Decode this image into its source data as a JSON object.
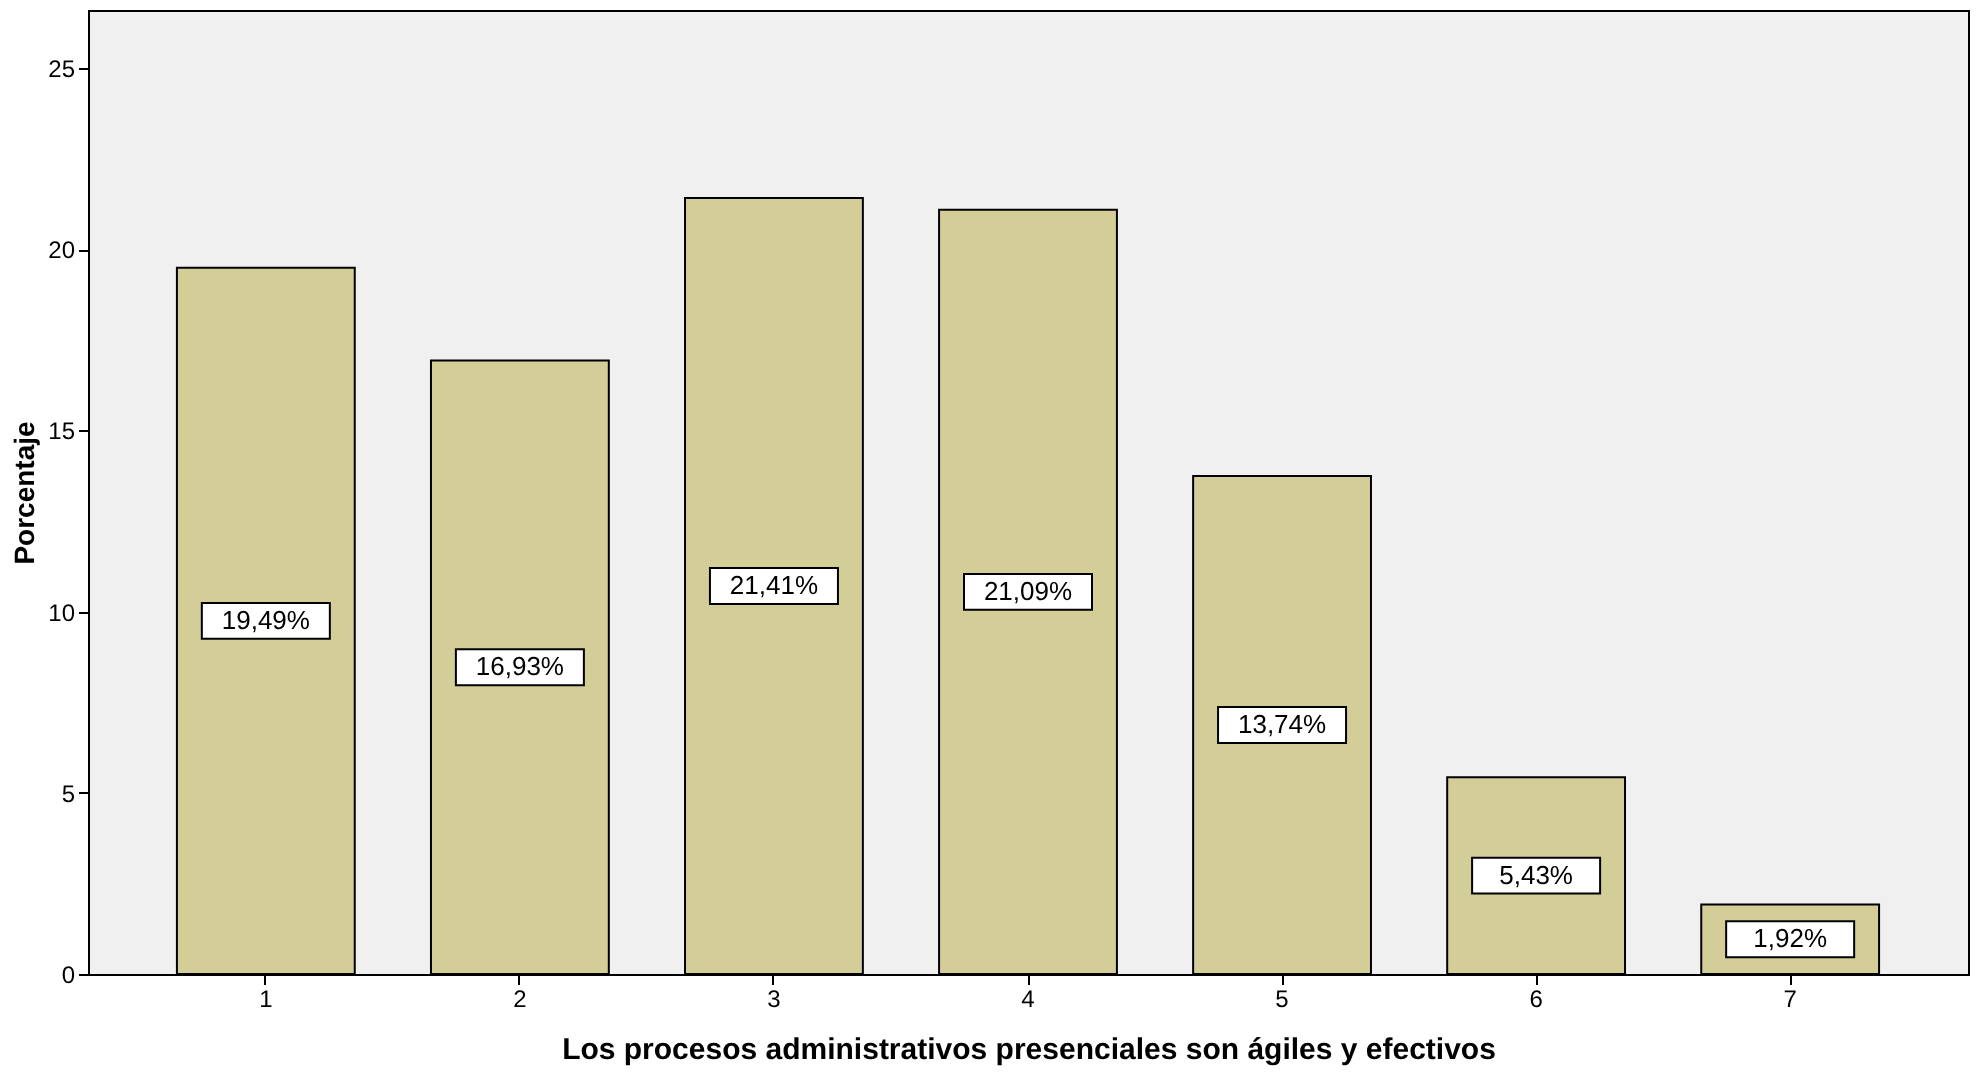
{
  "chart_data": {
    "type": "bar",
    "xlabel": "Los procesos administrativos presenciales son ágiles y efectivos",
    "ylabel": "Porcentaje",
    "categories": [
      "1",
      "2",
      "3",
      "4",
      "5",
      "6",
      "7"
    ],
    "values": [
      19.49,
      16.93,
      21.41,
      21.09,
      13.74,
      5.43,
      1.92
    ],
    "value_labels": [
      "19,49%",
      "16,93%",
      "21,41%",
      "21,09%",
      "13,74%",
      "5,43%",
      "1,92%"
    ],
    "color": "#d3ce97",
    "ylim": [
      0,
      26.6
    ],
    "yticks": [
      0,
      5,
      10,
      15,
      20,
      25
    ],
    "grid": false
  }
}
